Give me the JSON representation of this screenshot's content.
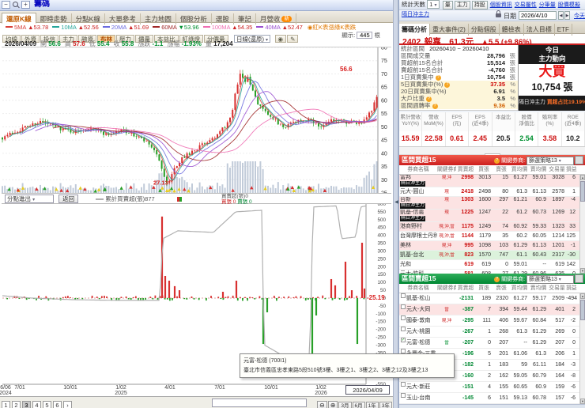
{
  "window": {
    "title": "籌碼"
  },
  "main_tabs": {
    "items": [
      {
        "label": "還原K線",
        "active": true
      },
      {
        "label": "即時走勢"
      },
      {
        "label": "分點K線"
      },
      {
        "label": "大單參考"
      },
      {
        "label": "主力地圖"
      },
      {
        "label": "個股分析"
      },
      {
        "label": "選股"
      },
      {
        "label": "筆記"
      },
      {
        "label": "月營收",
        "badge": "新"
      }
    ]
  },
  "ma_bar": {
    "items": [
      {
        "name": "5MA",
        "dir": "▲",
        "value": "53.78",
        "color": "#d8413a"
      },
      {
        "name": "10MA",
        "dir": "▲",
        "value": "52.56",
        "color": "#26a69a"
      },
      {
        "name": "20MA",
        "dir": "▲",
        "value": "51.69",
        "color": "#6b6bdf"
      },
      {
        "name": "60MA",
        "dir": "▼",
        "value": "53.96",
        "color": "#a02828"
      },
      {
        "name": "100MA",
        "dir": "▲",
        "value": "54.35",
        "color": "#f06eb2"
      },
      {
        "name": "40MA",
        "dir": "▲",
        "value": "52.47",
        "color": "#9a4fd0"
      }
    ],
    "note": "◉紅K表漲綠K表跌"
  },
  "chart_toolbar": {
    "buttons": [
      {
        "label": "均線"
      },
      {
        "label": "外資"
      },
      {
        "label": "投信"
      },
      {
        "label": "主力"
      },
      {
        "label": "融資"
      },
      {
        "label": "布林",
        "active": true
      },
      {
        "label": "壓力"
      },
      {
        "label": "價量"
      },
      {
        "label": "本益比"
      },
      {
        "label": "紅綠燈"
      },
      {
        "label": "分價量"
      }
    ],
    "period_dropdown": "日線(還原)",
    "icons": [
      "◉",
      "✎"
    ],
    "display_label": "顯示:",
    "display_value": "445",
    "display_unit": "根"
  },
  "ohlc": {
    "date": "2026/04/09",
    "fields": [
      {
        "label": "開",
        "value": "56.6",
        "color": "#009030"
      },
      {
        "label": "高",
        "value": "57.6",
        "color": "#d02020"
      },
      {
        "label": "低",
        "value": "55.4",
        "color": "#009030"
      },
      {
        "label": "收",
        "value": "55.8",
        "color": "#009030"
      },
      {
        "label": "漲跌",
        "value": "-1.1",
        "color": "#009030"
      },
      {
        "label": "漲幅",
        "value": "-1.93%",
        "color": "#009030"
      },
      {
        "label": "量",
        "value": "17,204",
        "color": "#222222"
      }
    ]
  },
  "flow_header": {
    "selector": "分點進出",
    "back_button": "返回",
    "line_legend": "累計買賣超(張)877",
    "bar_legend": "買賣超(張)0",
    "buy_legend": "買張 0",
    "sell_legend": "賣張 0"
  },
  "x_axis": {
    "ticks": [
      {
        "x": 4,
        "l1": "6/06",
        "l2": "2024"
      },
      {
        "x": 22,
        "l1": "7/01"
      },
      {
        "x": 86,
        "l1": "10/01"
      },
      {
        "x": 150,
        "l1": "1/02",
        "l2": "2025"
      },
      {
        "x": 212,
        "l1": "4/01"
      },
      {
        "x": 275,
        "l1": "7/01"
      },
      {
        "x": 340,
        "l1": "10/01"
      },
      {
        "x": 403,
        "l1": "1/02",
        "l2": "2026"
      }
    ],
    "current": "2026/04/09"
  },
  "bottom_toolbar": {
    "pages": [
      "1",
      "2",
      "3",
      "4",
      "5",
      "6",
      "›"
    ],
    "active_page": "3",
    "zoom_out": "⊖",
    "zoom_in": "⊕",
    "period_buttons": [
      "3月",
      "6月",
      "1年",
      "3年"
    ],
    "minus": "−",
    "restore": "還原"
  },
  "tooltip": {
    "line1": "元富-松德 (700I1)",
    "line2": "臺北市信義區忠孝東路5段510號3樓、3樓之1、3樓之2、3樓之12及3樓之13"
  },
  "right_panel": {
    "stat_days_label": "統計天數",
    "stat_days_value": "1",
    "mode_buttons": [
      "量",
      "主力",
      "持股"
    ],
    "links": [
      "個股資訊",
      "交易屬性",
      "分筆量",
      "股價模擬"
    ],
    "day_trade_link": "隔日沖主力",
    "date_label": "日期",
    "date_value": "2026/4/10",
    "today_label": "今天",
    "tabs": [
      {
        "label": "籌碼分析",
        "active": true
      },
      {
        "label": "重大事件(2)"
      },
      {
        "label": "分點個股"
      },
      {
        "label": "體檢表"
      },
      {
        "label": "法人目標"
      },
      {
        "label": "ETF"
      }
    ],
    "stock": {
      "code": "2402",
      "name": "毅嘉",
      "price": "61.3元",
      "change": "▲5.5 (+9.86%)"
    },
    "stats": {
      "range_label": "統計區間",
      "range_value": "20260410 ~ 20260410",
      "rows": [
        {
          "label": "區間成交量",
          "value": "28,796",
          "unit": "張"
        },
        {
          "label": "買超前15名合計",
          "value": "15,514",
          "unit": "張"
        },
        {
          "label": "賣超前15名合計",
          "value": "-4,760",
          "unit": "張"
        },
        {
          "label": "1日買賣集中",
          "value": "10,754",
          "unit": "張",
          "help": true
        },
        {
          "label": "5日買賣集中(%)",
          "value": "37.35",
          "unit": "%",
          "help": true,
          "cream": true,
          "color": "#cc0000"
        },
        {
          "label": "20日買賣集中(%)",
          "value": "6.91",
          "unit": "%",
          "cream": true
        },
        {
          "label": "大戶比重",
          "value": "3.5",
          "unit": "%",
          "help": true,
          "cream": true
        },
        {
          "label": "區間週轉率",
          "value": "9.36",
          "unit": "%",
          "help": true,
          "cream": true,
          "color": "#d06000"
        }
      ]
    },
    "today_box": {
      "title_line1": "今日",
      "title_line2": "主力動向",
      "action": "大買",
      "amount": "10,754 張",
      "footer_label": "隔日沖主力",
      "footer_value": "買超占比19.19%",
      "footer_arrow": "↗"
    },
    "metrics": [
      {
        "h1": "累計營收",
        "h2": "YoY(%)",
        "value": "15.59",
        "color": "#cc1111"
      },
      {
        "h1": "營收",
        "h2": "MoM(%)",
        "value": "22.58",
        "color": "#cc1111"
      },
      {
        "h1": "EPS",
        "h2": "(元)",
        "value": "0.61",
        "color": "#cc1111"
      },
      {
        "h1": "EPS",
        "h2": "(近4季)",
        "value": "2.45",
        "color": "#cc1111"
      },
      {
        "h1": "本益比",
        "h2": "",
        "value": "20.5",
        "color": "#222222"
      },
      {
        "h1": "股價",
        "h2": "淨值比",
        "value": "2.54",
        "color": "#009030"
      },
      {
        "h1": "殖利率",
        "h2": "(%)",
        "value": "3.58",
        "color": "#cc1111"
      },
      {
        "h1": "ROE",
        "h2": "(近4季)",
        "value": "10.2",
        "color": "#222222"
      }
    ],
    "buy_table": {
      "title": "區間買超15",
      "filter_help": "?",
      "filter_label": "關鍵券商:",
      "filter_value": "篩選策略13",
      "headers": [
        "券商名稱",
        "關鍵券商",
        "買賣超",
        "買張",
        "賣張",
        "買均價",
        "賣均價",
        "交易量",
        "損益(萬)"
      ],
      "rows": [
        {
          "name": "富邦",
          "badge": "隔日沖主力",
          "marks": "現,沖",
          "net": "2998",
          "buy": "3013",
          "sell": "15",
          "buy_avg": "61.27",
          "sell_avg": "59.01",
          "volume": "3028",
          "pl": "6",
          "bg": "pink"
        },
        {
          "name": "元大-圓山",
          "marks": "現",
          "net": "2418",
          "buy": "2498",
          "sell": "80",
          "buy_avg": "61.3",
          "sell_avg": "61.13",
          "volume": "2578",
          "pl": "1",
          "bg": "white"
        },
        {
          "name": "台新",
          "badge": "隔日沖主力",
          "marks": "現",
          "net": "1303",
          "buy": "1600",
          "sell": "297",
          "buy_avg": "61.21",
          "sell_avg": "60.9",
          "volume": "1897",
          "pl": "-4",
          "bg": "pink"
        },
        {
          "name": "凱基-信義",
          "badge": "隔日沖主力",
          "marks": "現",
          "net": "1225",
          "buy": "1247",
          "sell": "22",
          "buy_avg": "61.2",
          "sell_avg": "60.73",
          "volume": "1269",
          "pl": "12",
          "bg": "pink"
        },
        {
          "name": "港商野村",
          "marks": "現,沖,當",
          "net": "1175",
          "buy": "1249",
          "sell": "74",
          "buy_avg": "60.92",
          "sell_avg": "59.33",
          "volume": "1323",
          "pl": "33",
          "bg": "pink"
        },
        {
          "name": "台灣摩根士丹利",
          "marks": "現,沖,當",
          "net": "1144",
          "buy": "1179",
          "sell": "35",
          "buy_avg": "60.2",
          "sell_avg": "60.05",
          "volume": "1214",
          "pl": "125",
          "bg": "white"
        },
        {
          "name": "美林",
          "marks": "現,沖",
          "net": "995",
          "buy": "1098",
          "sell": "103",
          "buy_avg": "61.29",
          "sell_avg": "61.13",
          "volume": "1201",
          "pl": "-1",
          "bg": "pink"
        },
        {
          "name": "凱基-台北",
          "marks": "現,沖,當",
          "net": "823",
          "buy": "1570",
          "sell": "747",
          "buy_avg": "61.1",
          "sell_avg": "60.43",
          "volume": "2317",
          "pl": "-30",
          "bg": "green"
        },
        {
          "name": "光和",
          "marks": "",
          "net": "619",
          "buy": "619",
          "sell": "0",
          "buy_avg": "59.01",
          "sell_avg": "--",
          "volume": "619",
          "pl": "142",
          "bg": "white"
        },
        {
          "name": "元大-竹科",
          "marks": "",
          "net": "581",
          "buy": "608",
          "sell": "27",
          "buy_avg": "61.29",
          "sell_avg": "60.96",
          "volume": "635",
          "pl": "0",
          "bg": "white"
        }
      ]
    },
    "sell_table": {
      "title": "區間賣超15",
      "filter_help": "?",
      "filter_label": "關鍵券商:",
      "filter_value": "篩選策略13",
      "headers": [
        "券商名稱",
        "關鍵券商",
        "買賣超",
        "買張",
        "賣張",
        "買均價",
        "賣均價",
        "交易量",
        "損益(萬)"
      ],
      "rows": [
        {
          "name": "凱基-松山",
          "marks": "",
          "net": "-2131",
          "buy": "189",
          "sell": "2320",
          "buy_avg": "61.27",
          "sell_avg": "59.17",
          "volume": "2509",
          "pl": "-494",
          "bg": "white"
        },
        {
          "name": "元大-大同",
          "marks": "當",
          "net": "-387",
          "buy": "7",
          "sell": "394",
          "buy_avg": "59.44",
          "sell_avg": "61.29",
          "volume": "401",
          "pl": "2",
          "bg": "pink"
        },
        {
          "name": "國泰-敦南",
          "marks": "現,沖",
          "net": "-295",
          "buy": "111",
          "sell": "406",
          "buy_avg": "59.67",
          "sell_avg": "60.84",
          "volume": "517",
          "pl": "-2",
          "bg": "white"
        },
        {
          "name": "元大-桃園",
          "marks": "",
          "net": "-267",
          "buy": "1",
          "sell": "268",
          "buy_avg": "61.3",
          "sell_avg": "61.29",
          "volume": "269",
          "pl": "0",
          "bg": "white"
        },
        {
          "name": "元富-松德",
          "marks": "當",
          "marks_color": "#009030",
          "checked": true,
          "net": "-207",
          "buy": "0",
          "sell": "207",
          "buy_avg": "--",
          "sell_avg": "61.29",
          "volume": "207",
          "pl": "0",
          "bg": "white"
        },
        {
          "name": "永豐金-三重",
          "marks": "",
          "net": "-196",
          "buy": "5",
          "sell": "201",
          "buy_avg": "61.06",
          "sell_avg": "61.3",
          "volume": "206",
          "pl": "1",
          "bg": "white"
        },
        {
          "name": "國泰-台北",
          "marks": "",
          "net": "-182",
          "buy": "1",
          "sell": "183",
          "buy_avg": "59",
          "sell_avg": "61.11",
          "volume": "184",
          "pl": "-3",
          "bg": "white"
        },
        {
          "name": "凱基-嘉義",
          "marks": "",
          "net": "-160",
          "buy": "2",
          "sell": "162",
          "buy_avg": "59.05",
          "sell_avg": "60.79",
          "volume": "164",
          "pl": "-8",
          "bg": "white"
        },
        {
          "name": "元大-新莊",
          "marks": "",
          "net": "-151",
          "buy": "4",
          "sell": "155",
          "buy_avg": "60.65",
          "sell_avg": "60.9",
          "volume": "159",
          "pl": "-6",
          "bg": "white"
        },
        {
          "name": "玉山-台南",
          "marks": "",
          "net": "-145",
          "buy": "6",
          "sell": "151",
          "buy_avg": "59.13",
          "sell_avg": "60.78",
          "volume": "157",
          "pl": "-6",
          "bg": "white"
        }
      ]
    }
  },
  "chart_data": {
    "type": [
      "candlestick",
      "bar"
    ],
    "candle": {
      "title": "還原K線(日)",
      "y_ticks": [
        80,
        75,
        70,
        65,
        60,
        55,
        50,
        45,
        40,
        35,
        30,
        25
      ],
      "bars_shown": 445,
      "price_keyframes": [
        [
          3,
          46
        ],
        [
          25,
          49
        ],
        [
          50,
          52
        ],
        [
          70,
          50
        ],
        [
          95,
          48
        ],
        [
          115,
          50
        ],
        [
          135,
          47
        ],
        [
          155,
          49
        ],
        [
          175,
          46
        ],
        [
          190,
          43
        ],
        [
          200,
          38
        ],
        [
          208,
          31
        ],
        [
          212,
          27.5
        ],
        [
          218,
          33
        ],
        [
          230,
          38
        ],
        [
          245,
          41
        ],
        [
          260,
          44
        ],
        [
          275,
          47
        ],
        [
          288,
          51
        ],
        [
          295,
          58
        ],
        [
          300,
          66
        ],
        [
          305,
          71
        ],
        [
          309,
          66
        ],
        [
          314,
          69
        ],
        [
          320,
          63
        ],
        [
          328,
          58
        ],
        [
          338,
          55
        ],
        [
          350,
          52
        ],
        [
          362,
          50
        ],
        [
          375,
          52
        ],
        [
          388,
          53
        ],
        [
          398,
          51
        ],
        [
          408,
          50
        ],
        [
          418,
          52
        ],
        [
          428,
          53
        ],
        [
          438,
          51
        ],
        [
          448,
          52
        ],
        [
          456,
          51
        ],
        [
          462,
          53
        ],
        [
          468,
          55
        ],
        [
          472,
          58
        ],
        [
          478,
          61.3
        ]
      ],
      "last_close": 61.3,
      "low_annotation": {
        "x": 194,
        "price": 29,
        "label": "27.13"
      },
      "high_annotation": {
        "x": 430,
        "price": 72,
        "label": "56.6"
      }
    },
    "flow": {
      "ylabel": "買賣超(張)",
      "y_max": 600,
      "y_min": -550,
      "y_step": 50,
      "current_label": "-25.19",
      "line_keyframes": [
        [
          3,
          15
        ],
        [
          40,
          0
        ],
        [
          90,
          -10
        ],
        [
          150,
          -15
        ],
        [
          202,
          -15
        ],
        [
          206,
          379
        ],
        [
          225,
          429
        ],
        [
          270,
          419
        ],
        [
          298,
          550
        ],
        [
          331,
          560
        ],
        [
          334,
          -298
        ],
        [
          355,
          -359
        ],
        [
          392,
          -369
        ],
        [
          396,
          581
        ],
        [
          426,
          588
        ],
        [
          432,
          379
        ],
        [
          450,
          389
        ],
        [
          456,
          581
        ],
        [
          463,
          588
        ]
      ],
      "big_bars": [
        [
          205,
          520
        ],
        [
          209,
          141
        ],
        [
          214,
          111
        ],
        [
          221,
          76
        ],
        [
          227,
          50
        ],
        [
          282,
          40
        ],
        [
          299,
          111
        ],
        [
          333,
          -293
        ],
        [
          338,
          -91
        ],
        [
          395,
          -444
        ],
        [
          400,
          -111
        ],
        [
          419,
          121
        ],
        [
          424,
          81
        ],
        [
          437,
          232
        ],
        [
          445,
          50
        ],
        [
          452,
          -293
        ],
        [
          458,
          353
        ],
        [
          461,
          61
        ]
      ]
    }
  }
}
